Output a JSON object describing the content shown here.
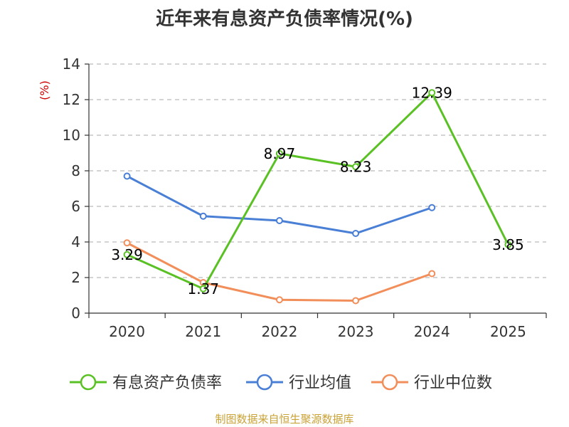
{
  "chart_data": {
    "type": "line",
    "title": "近年来有息资产负债率情况(%)",
    "ylabel": "(%)",
    "xlabel": "",
    "categories": [
      "2020",
      "2021",
      "2022",
      "2023",
      "2024",
      "2025"
    ],
    "ylim": [
      0,
      14
    ],
    "yticks": [
      0,
      2,
      4,
      6,
      8,
      10,
      12,
      14
    ],
    "grid": true,
    "legend_position": "bottom",
    "series": [
      {
        "name": "有息资产负债率",
        "color": "#5ac124",
        "values": [
          3.29,
          1.37,
          8.97,
          8.23,
          12.39,
          3.85
        ],
        "labels": [
          "3.29",
          "1.37",
          "8.97",
          "8.23",
          "12.39",
          "3.85"
        ]
      },
      {
        "name": "行业均值",
        "color": "#4a7fd6",
        "values": [
          7.7,
          5.45,
          5.2,
          4.48,
          5.93,
          null
        ]
      },
      {
        "name": "行业中位数",
        "color": "#f28e5a",
        "values": [
          3.95,
          1.72,
          0.75,
          0.7,
          2.22,
          null
        ]
      }
    ]
  },
  "source": "制图数据来自恒生聚源数据库"
}
